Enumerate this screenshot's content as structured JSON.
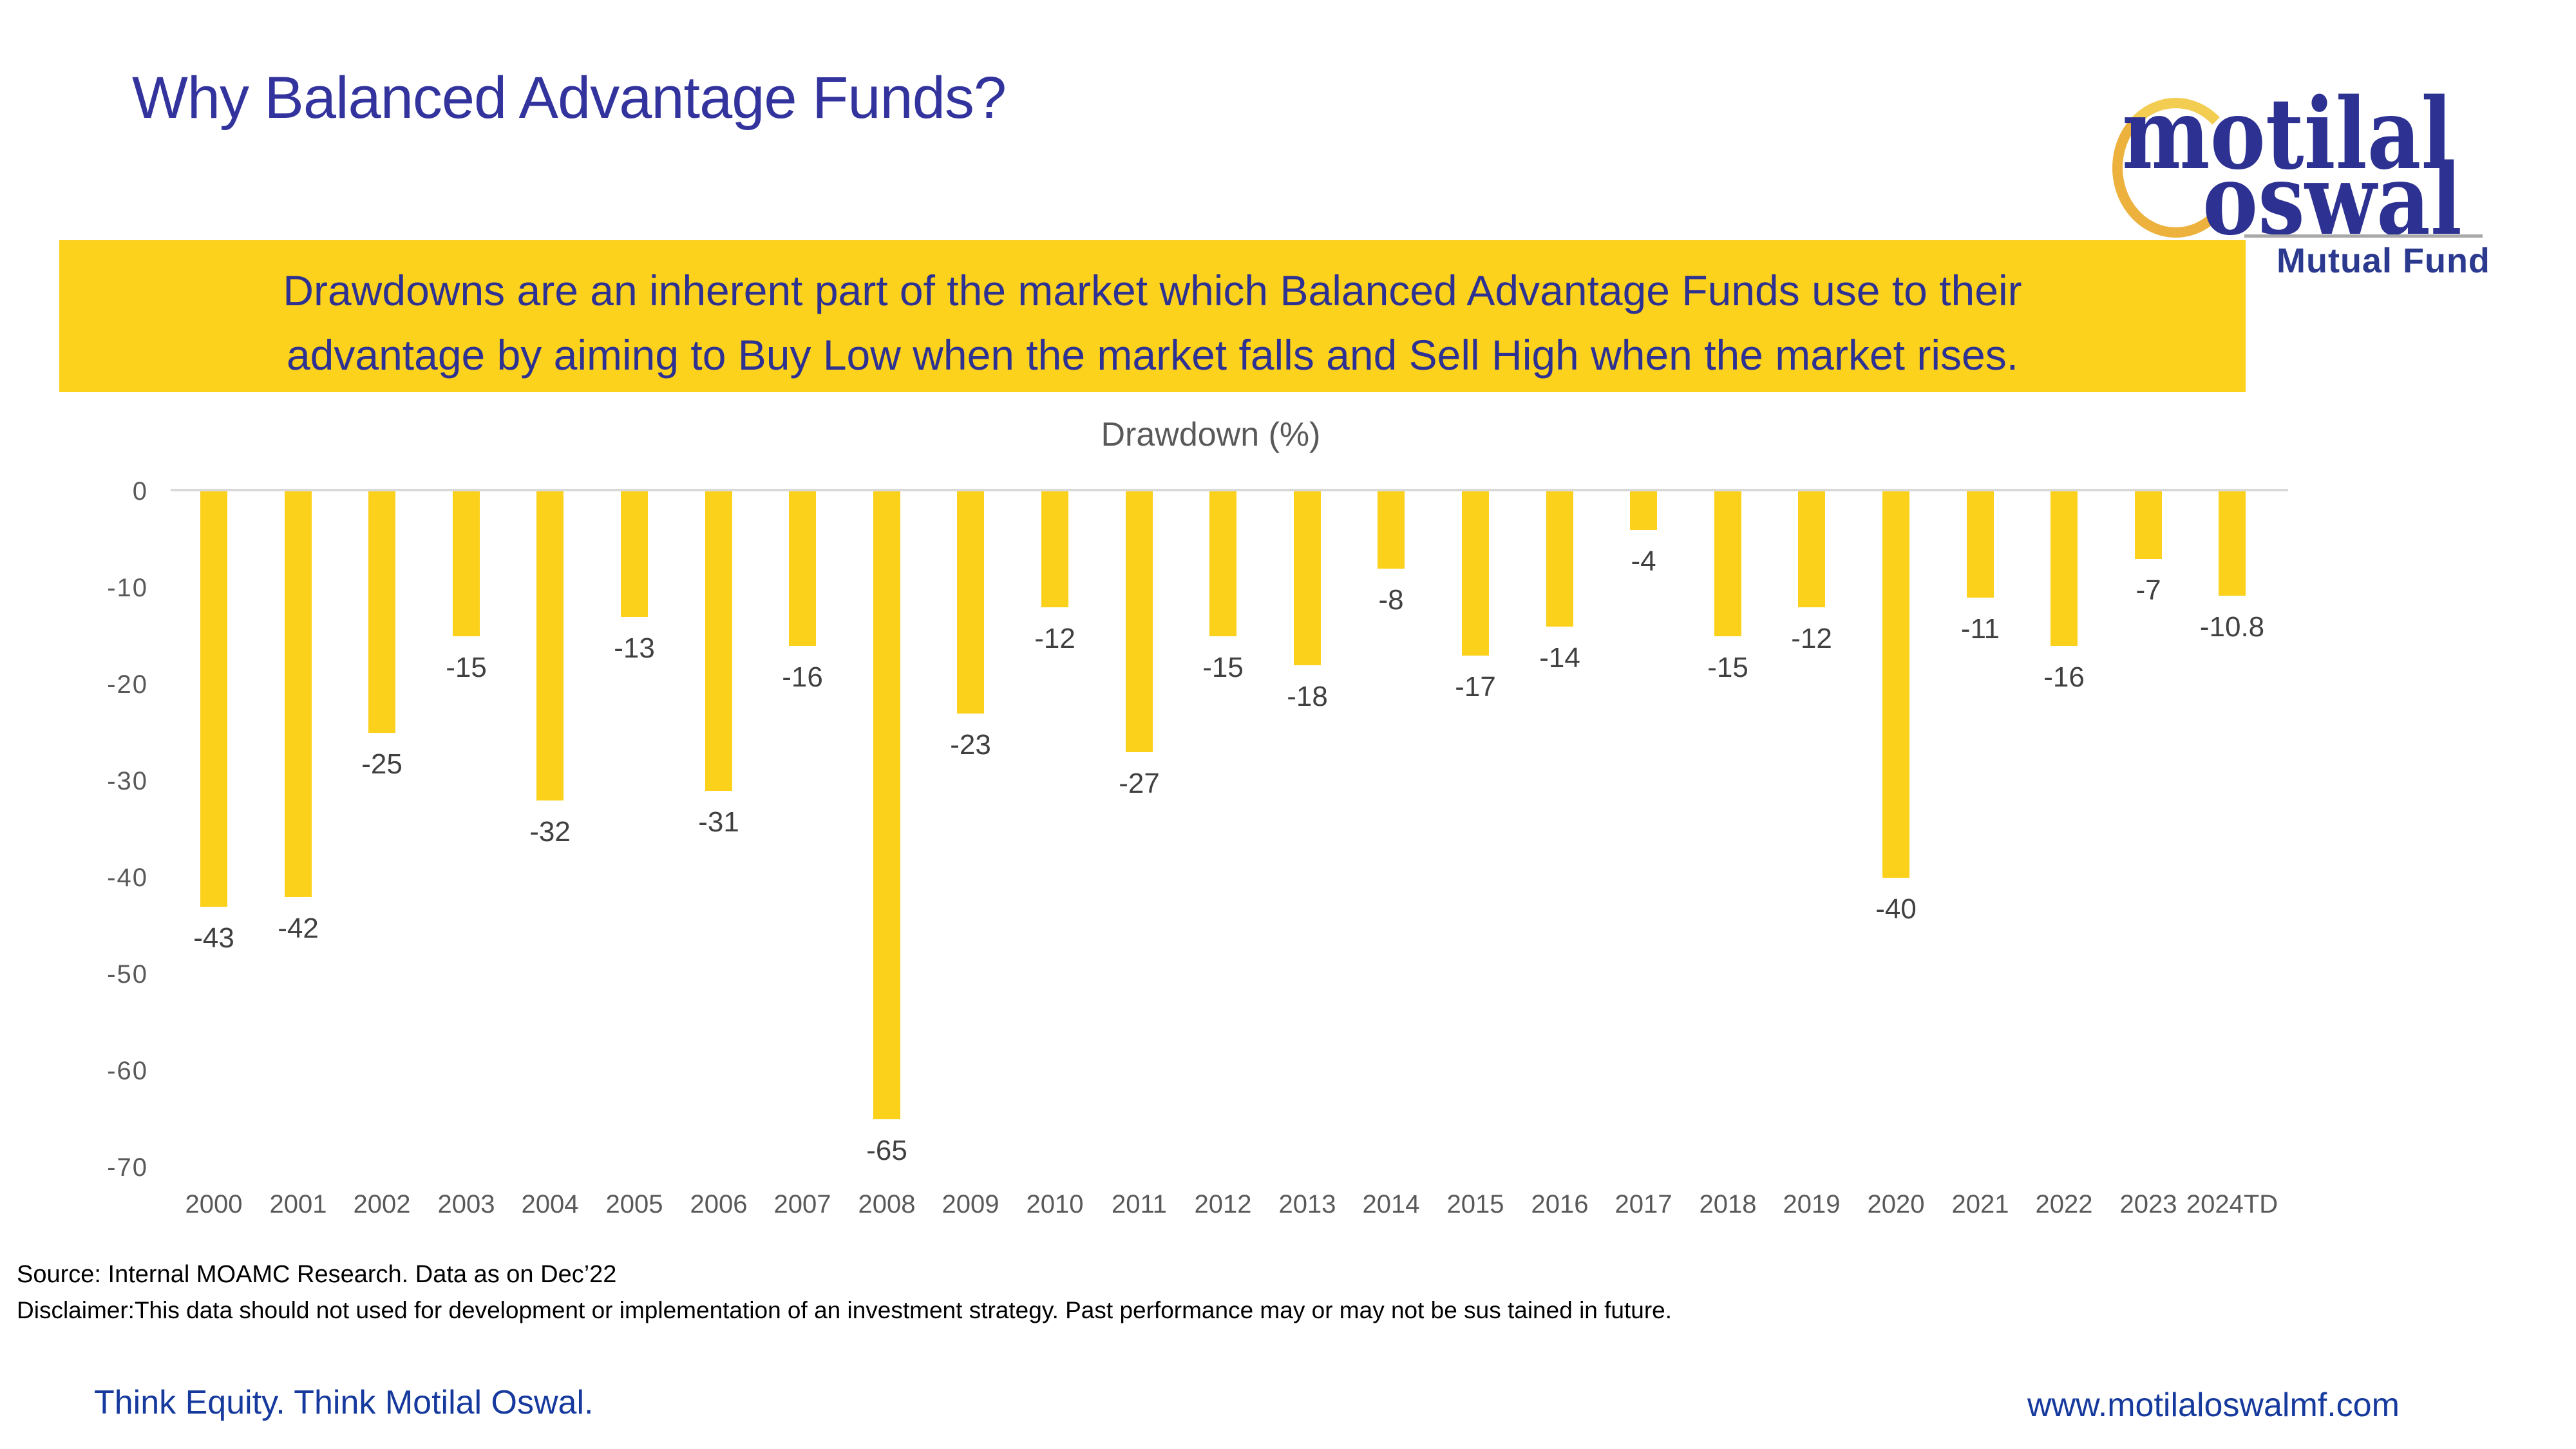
{
  "header": {
    "title": "Why Balanced Advantage Funds?"
  },
  "logo": {
    "word1": "motilal",
    "word2": "oswal",
    "subtitle": "Mutual Fund",
    "ring_icon": "gold-open-ring"
  },
  "banner": {
    "line1": "Drawdowns are an inherent part of the market which Balanced Advantage Funds use to their",
    "line2": "advantage by aiming to Buy Low when the market falls and Sell High when the market rises."
  },
  "chart_data": {
    "type": "bar",
    "title": "Drawdown (%)",
    "categories": [
      "2000",
      "2001",
      "2002",
      "2003",
      "2004",
      "2005",
      "2006",
      "2007",
      "2008",
      "2009",
      "2010",
      "2011",
      "2012",
      "2013",
      "2014",
      "2015",
      "2016",
      "2017",
      "2018",
      "2019",
      "2020",
      "2021",
      "2022",
      "2023",
      "2024TD"
    ],
    "values": [
      -43,
      -42,
      -25,
      -15,
      -32,
      -13,
      -31,
      -16,
      -65,
      -23,
      -12,
      -27,
      -15,
      -18,
      -8,
      -17,
      -14,
      -4,
      -15,
      -12,
      -40,
      -11,
      -16,
      -7,
      -10.8
    ],
    "xlabel": "",
    "ylabel": "",
    "ylim": [
      -70,
      0
    ],
    "yticks": [
      0,
      -10,
      -20,
      -30,
      -40,
      -50,
      -60,
      -70
    ],
    "grid": false,
    "legend": "none",
    "value_label_position": "below bar end",
    "bar_color": "#FBD11C"
  },
  "footer": {
    "source": "Source: Internal MOAMC Research. Data as on Dec’22",
    "disclaimer": "Disclaimer:This data should not used for development or implementation of an investment strategy. Past performance may or may not be sus tained in future.",
    "tagline": "Think Equity. Think Motilal Oswal.",
    "website": "www.motilaloswalmf.com"
  },
  "colors": {
    "title_blue": "#33339E",
    "brand_navy": "#2D3192",
    "footer_blue": "#16399D",
    "banner_yellow": "#FCD21C",
    "bar_yellow": "#FBD11C",
    "axis_text_gray": "#595959",
    "value_label_gray": "#404040",
    "axis_line_gray": "#D9D9D9",
    "logo_ring_gold": "#EDB23E"
  }
}
